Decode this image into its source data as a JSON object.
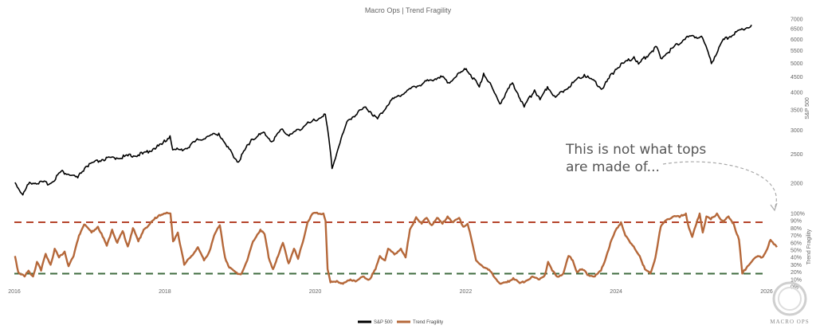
{
  "chart_data": {
    "type": "line",
    "title": "Macro Ops | Trend Fragility",
    "x_ticks": [
      "2016",
      "2018",
      "2020",
      "2022",
      "2024",
      "2026"
    ],
    "y_left": {
      "label": "S&P 500",
      "scale": "log",
      "ticks": [
        2000,
        2500,
        3000,
        3500,
        4000,
        4500,
        5000,
        5500,
        6000,
        6500,
        7000
      ]
    },
    "y_right": {
      "label": "Trend Fragility",
      "ticks": [
        "0%",
        "10%",
        "20%",
        "30%",
        "40%",
        "50%",
        "60%",
        "70%",
        "80%",
        "90%",
        "100%"
      ]
    },
    "thresholds": [
      {
        "value": 88,
        "color": "#b5432a"
      },
      {
        "value": 18,
        "color": "#3e6b3e"
      }
    ],
    "series": [
      {
        "name": "S&P 500",
        "color": "#000000",
        "points": [
          [
            "2016-01-04",
            2012
          ],
          [
            "2016-02-11",
            1829
          ],
          [
            "2016-03-15",
            2015
          ],
          [
            "2016-06-27",
            2000
          ],
          [
            "2016-08-15",
            2190
          ],
          [
            "2016-11-04",
            2085
          ],
          [
            "2016-12-13",
            2271
          ],
          [
            "2017-03-01",
            2395
          ],
          [
            "2017-06-19",
            2453
          ],
          [
            "2017-09-15",
            2500
          ],
          [
            "2017-12-18",
            2690
          ],
          [
            "2018-01-26",
            2872
          ],
          [
            "2018-02-08",
            2581
          ],
          [
            "2018-04-02",
            2581
          ],
          [
            "2018-06-12",
            2786
          ],
          [
            "2018-09-20",
            2930
          ],
          [
            "2018-10-29",
            2641
          ],
          [
            "2018-12-24",
            2351
          ],
          [
            "2019-02-25",
            2796
          ],
          [
            "2019-04-30",
            2945
          ],
          [
            "2019-06-03",
            2744
          ],
          [
            "2019-07-26",
            3025
          ],
          [
            "2019-08-27",
            2869
          ],
          [
            "2019-11-15",
            3120
          ],
          [
            "2019-12-31",
            3230
          ],
          [
            "2020-02-19",
            3386
          ],
          [
            "2020-03-23",
            2237
          ],
          [
            "2020-06-08",
            3232
          ],
          [
            "2020-09-02",
            3580
          ],
          [
            "2020-10-30",
            3270
          ],
          [
            "2020-12-31",
            3756
          ],
          [
            "2021-04-30",
            4181
          ],
          [
            "2021-09-02",
            4537
          ],
          [
            "2021-10-04",
            4300
          ],
          [
            "2021-12-31",
            4766
          ],
          [
            "2022-01-03",
            4797
          ],
          [
            "2022-03-08",
            4170
          ],
          [
            "2022-03-29",
            4631
          ],
          [
            "2022-06-16",
            3666
          ],
          [
            "2022-08-16",
            4305
          ],
          [
            "2022-10-12",
            3577
          ],
          [
            "2022-12-01",
            4076
          ],
          [
            "2022-12-28",
            3783
          ],
          [
            "2023-02-02",
            4179
          ],
          [
            "2023-03-13",
            3855
          ],
          [
            "2023-07-31",
            4589
          ],
          [
            "2023-10-27",
            4117
          ],
          [
            "2023-12-29",
            4770
          ],
          [
            "2024-03-28",
            5254
          ],
          [
            "2024-04-19",
            4967
          ],
          [
            "2024-07-16",
            5667
          ],
          [
            "2024-08-05",
            5186
          ],
          [
            "2024-12-06",
            6090
          ],
          [
            "2025-02-19",
            6144
          ],
          [
            "2025-04-08",
            4983
          ],
          [
            "2025-05-30",
            5912
          ],
          [
            "2025-08-29",
            6460
          ],
          [
            "2025-10-20",
            6700
          ]
        ]
      },
      {
        "name": "Trend Fragility",
        "color": "#b5683a",
        "points": [
          [
            "2016-01-04",
            42
          ],
          [
            "2016-01-20",
            20
          ],
          [
            "2016-02-20",
            14
          ],
          [
            "2016-03-10",
            22
          ],
          [
            "2016-04-01",
            14
          ],
          [
            "2016-04-20",
            34
          ],
          [
            "2016-05-10",
            22
          ],
          [
            "2016-06-01",
            45
          ],
          [
            "2016-06-25",
            30
          ],
          [
            "2016-07-15",
            52
          ],
          [
            "2016-08-05",
            40
          ],
          [
            "2016-09-01",
            48
          ],
          [
            "2016-09-20",
            28
          ],
          [
            "2016-10-15",
            42
          ],
          [
            "2016-11-10",
            70
          ],
          [
            "2016-12-05",
            85
          ],
          [
            "2017-01-10",
            74
          ],
          [
            "2017-02-10",
            82
          ],
          [
            "2017-03-05",
            68
          ],
          [
            "2017-03-25",
            56
          ],
          [
            "2017-04-20",
            78
          ],
          [
            "2017-05-15",
            60
          ],
          [
            "2017-06-10",
            76
          ],
          [
            "2017-07-05",
            55
          ],
          [
            "2017-07-30",
            80
          ],
          [
            "2017-08-25",
            62
          ],
          [
            "2017-09-20",
            78
          ],
          [
            "2017-10-15",
            84
          ],
          [
            "2017-11-10",
            92
          ],
          [
            "2017-12-05",
            98
          ],
          [
            "2018-01-05",
            100
          ],
          [
            "2018-01-28",
            100
          ],
          [
            "2018-02-10",
            62
          ],
          [
            "2018-03-05",
            74
          ],
          [
            "2018-04-05",
            30
          ],
          [
            "2018-05-10",
            42
          ],
          [
            "2018-06-10",
            54
          ],
          [
            "2018-07-10",
            36
          ],
          [
            "2018-08-05",
            48
          ],
          [
            "2018-08-28",
            70
          ],
          [
            "2018-09-25",
            84
          ],
          [
            "2018-10-20",
            40
          ],
          [
            "2018-11-10",
            26
          ],
          [
            "2018-12-10",
            20
          ],
          [
            "2019-01-05",
            17
          ],
          [
            "2019-02-05",
            36
          ],
          [
            "2019-03-05",
            62
          ],
          [
            "2019-04-10",
            78
          ],
          [
            "2019-04-30",
            72
          ],
          [
            "2019-05-20",
            40
          ],
          [
            "2019-06-10",
            24
          ],
          [
            "2019-07-05",
            42
          ],
          [
            "2019-07-28",
            60
          ],
          [
            "2019-08-25",
            32
          ],
          [
            "2019-09-20",
            52
          ],
          [
            "2019-10-10",
            38
          ],
          [
            "2019-11-01",
            60
          ],
          [
            "2019-11-25",
            88
          ],
          [
            "2019-12-20",
            100
          ],
          [
            "2020-02-10",
            100
          ],
          [
            "2020-02-20",
            90
          ],
          [
            "2020-03-01",
            24
          ],
          [
            "2020-03-15",
            6
          ],
          [
            "2020-04-15",
            8
          ],
          [
            "2020-05-15",
            4
          ],
          [
            "2020-06-20",
            10
          ],
          [
            "2020-07-20",
            8
          ],
          [
            "2020-08-20",
            14
          ],
          [
            "2020-09-20",
            10
          ],
          [
            "2020-10-20",
            24
          ],
          [
            "2020-11-10",
            42
          ],
          [
            "2020-12-05",
            36
          ],
          [
            "2020-12-20",
            52
          ],
          [
            "2021-01-20",
            44
          ],
          [
            "2021-02-20",
            52
          ],
          [
            "2021-03-15",
            40
          ],
          [
            "2021-04-05",
            78
          ],
          [
            "2021-05-05",
            95
          ],
          [
            "2021-06-01",
            86
          ],
          [
            "2021-06-25",
            94
          ],
          [
            "2021-07-20",
            84
          ],
          [
            "2021-08-15",
            94
          ],
          [
            "2021-09-10",
            86
          ],
          [
            "2021-10-05",
            96
          ],
          [
            "2021-11-01",
            88
          ],
          [
            "2021-11-30",
            94
          ],
          [
            "2021-12-20",
            82
          ],
          [
            "2022-01-10",
            86
          ],
          [
            "2022-01-31",
            62
          ],
          [
            "2022-02-20",
            36
          ],
          [
            "2022-03-15",
            30
          ],
          [
            "2022-04-05",
            26
          ],
          [
            "2022-05-05",
            20
          ],
          [
            "2022-05-30",
            10
          ],
          [
            "2022-06-20",
            4
          ],
          [
            "2022-07-20",
            6
          ],
          [
            "2022-08-20",
            12
          ],
          [
            "2022-09-20",
            5
          ],
          [
            "2022-10-20",
            8
          ],
          [
            "2022-11-20",
            14
          ],
          [
            "2022-12-20",
            10
          ],
          [
            "2023-01-20",
            16
          ],
          [
            "2023-02-05",
            34
          ],
          [
            "2023-02-25",
            22
          ],
          [
            "2023-03-20",
            14
          ],
          [
            "2023-04-20",
            18
          ],
          [
            "2023-05-15",
            42
          ],
          [
            "2023-06-05",
            36
          ],
          [
            "2023-06-25",
            20
          ],
          [
            "2023-07-20",
            24
          ],
          [
            "2023-08-20",
            16
          ],
          [
            "2023-09-20",
            14
          ],
          [
            "2023-10-20",
            22
          ],
          [
            "2023-11-15",
            42
          ],
          [
            "2023-12-10",
            64
          ],
          [
            "2024-01-05",
            80
          ],
          [
            "2024-01-25",
            88
          ],
          [
            "2024-02-15",
            70
          ],
          [
            "2024-03-10",
            60
          ],
          [
            "2024-04-01",
            52
          ],
          [
            "2024-04-25",
            42
          ],
          [
            "2024-05-20",
            24
          ],
          [
            "2024-06-15",
            18
          ],
          [
            "2024-07-10",
            40
          ],
          [
            "2024-08-05",
            82
          ],
          [
            "2024-09-05",
            92
          ],
          [
            "2024-10-05",
            96
          ],
          [
            "2024-11-05",
            95
          ],
          [
            "2024-12-05",
            100
          ],
          [
            "2024-12-20",
            80
          ],
          [
            "2025-01-05",
            68
          ],
          [
            "2025-01-25",
            86
          ],
          [
            "2025-02-10",
            100
          ],
          [
            "2025-02-25",
            74
          ],
          [
            "2025-03-15",
            96
          ],
          [
            "2025-04-05",
            92
          ],
          [
            "2025-05-05",
            100
          ],
          [
            "2025-06-05",
            88
          ],
          [
            "2025-06-30",
            96
          ],
          [
            "2025-07-25",
            86
          ],
          [
            "2025-08-20",
            64
          ],
          [
            "2025-09-05",
            18
          ],
          [
            "2025-09-30",
            28
          ],
          [
            "2025-10-25",
            36
          ],
          [
            "2025-11-20",
            42
          ],
          [
            "2025-12-10",
            40
          ],
          [
            "2026-01-05",
            52
          ],
          [
            "2026-01-20",
            64
          ],
          [
            "2026-02-05",
            58
          ],
          [
            "2026-02-20",
            54
          ]
        ]
      }
    ],
    "annotation": {
      "lines": [
        "This is not what tops",
        "are made of..."
      ]
    },
    "legend": {
      "placement": "bottom-center",
      "items": [
        {
          "name": "S&P 500",
          "color": "#000000"
        },
        {
          "name": "Trend Fragility",
          "color": "#b5683a"
        }
      ]
    },
    "logo_text": "MACRO OPS"
  }
}
